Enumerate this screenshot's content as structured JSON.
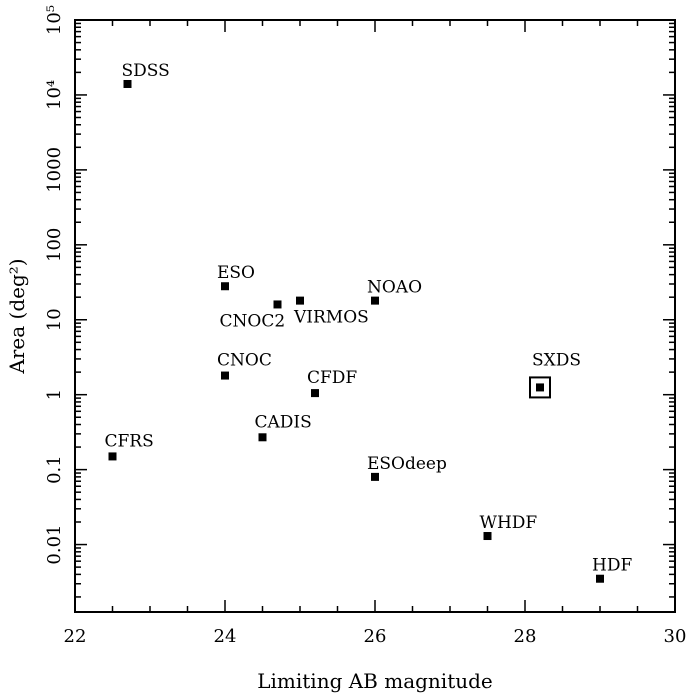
{
  "chart_data": {
    "type": "scatter",
    "title": "",
    "xlabel": "Limiting AB magnitude",
    "ylabel": "Area (deg²)",
    "xlim": [
      22,
      30
    ],
    "ylim_log10": [
      -2.9,
      5
    ],
    "y_scale": "log",
    "grid": false,
    "legend": "none",
    "x_ticks": [
      22,
      24,
      26,
      28,
      30
    ],
    "x_tick_labels": [
      "22",
      "24",
      "26",
      "28",
      "30"
    ],
    "y_ticks": [
      0.01,
      0.1,
      1,
      10,
      100,
      1000,
      10000,
      100000
    ],
    "y_tick_labels": [
      "0.01",
      "0.1",
      "1",
      "10",
      "100",
      "1000",
      "10⁴",
      "10⁵"
    ],
    "points": [
      {
        "label": "SDSS",
        "x": 22.7,
        "y": 14000,
        "highlight": false
      },
      {
        "label": "ESO",
        "x": 24.0,
        "y": 28,
        "highlight": false
      },
      {
        "label": "CNOC2",
        "x": 24.7,
        "y": 16,
        "highlight": false
      },
      {
        "label": "VIRMOS",
        "x": 25.0,
        "y": 18,
        "highlight": false
      },
      {
        "label": "NOAO",
        "x": 26.0,
        "y": 18,
        "highlight": false
      },
      {
        "label": "CNOC",
        "x": 24.0,
        "y": 1.8,
        "highlight": false
      },
      {
        "label": "CFDF",
        "x": 25.2,
        "y": 1.05,
        "highlight": false
      },
      {
        "label": "SXDS",
        "x": 28.2,
        "y": 1.25,
        "highlight": true
      },
      {
        "label": "CFRS",
        "x": 22.5,
        "y": 0.15,
        "highlight": false
      },
      {
        "label": "CADIS",
        "x": 24.5,
        "y": 0.27,
        "highlight": false
      },
      {
        "label": "ESOdeep",
        "x": 26.0,
        "y": 0.08,
        "highlight": false
      },
      {
        "label": "WHDF",
        "x": 27.5,
        "y": 0.013,
        "highlight": false
      },
      {
        "label": "HDF",
        "x": 29.0,
        "y": 0.0035,
        "highlight": false
      }
    ]
  }
}
